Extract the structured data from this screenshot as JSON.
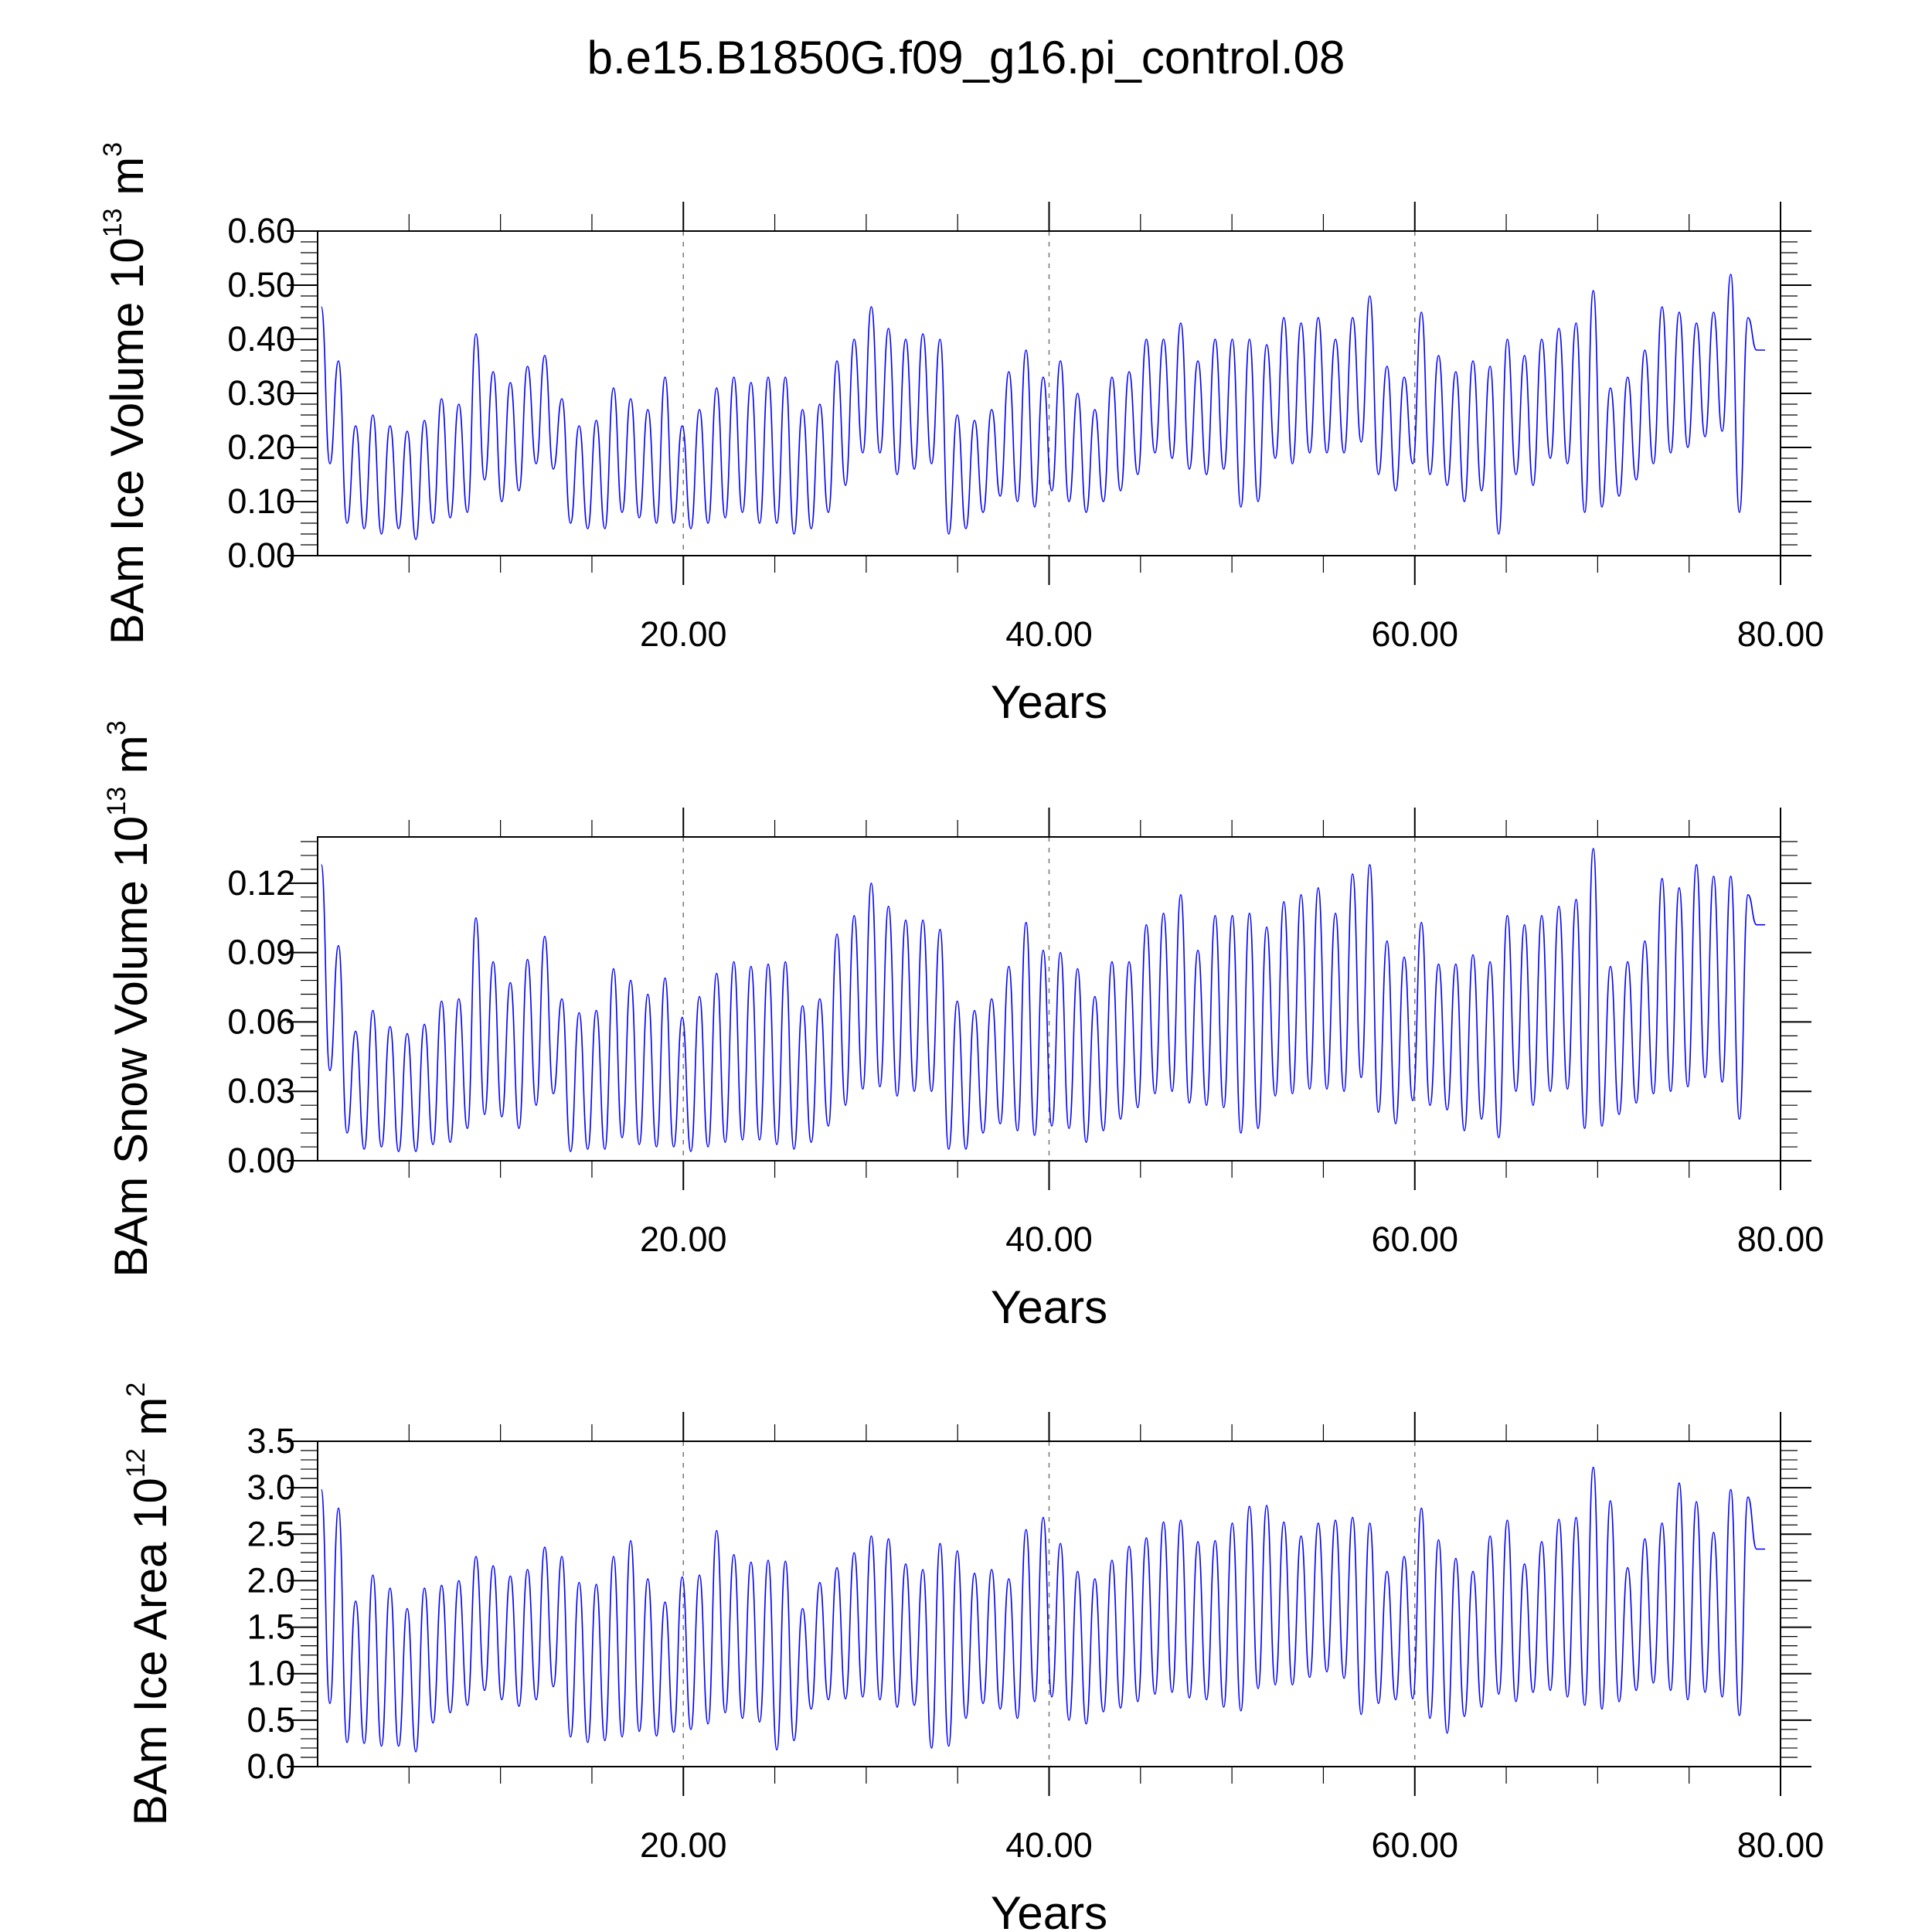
{
  "figure": {
    "title": "b.e15.B1850G.f09_g16.pi_control.08"
  },
  "chart_data": [
    {
      "type": "line",
      "ylabel": "BAm Ice Volume",
      "yunit_base": "10",
      "yunit_exp": "13",
      "yunit_unit": "m",
      "yunit_unit_exp": "3",
      "xlabel": "Years",
      "xlim": [
        0,
        80
      ],
      "ylim": [
        0,
        0.6
      ],
      "yticks": [
        0,
        0.1,
        0.2,
        0.3,
        0.4,
        0.5,
        0.6
      ],
      "ytick_labels": [
        "0.00",
        "0.10",
        "0.20",
        "0.30",
        "0.40",
        "0.50",
        "0.60"
      ],
      "xticks": [
        20,
        40,
        60,
        80
      ],
      "xtick_labels": [
        "20.00",
        "40.00",
        "60.00",
        "80.00"
      ],
      "grid_x": [
        20,
        40,
        60
      ],
      "series": [
        {
          "color": "#0000ff",
          "peaks": [
            0.46,
            0.36,
            0.24,
            0.26,
            0.24,
            0.23,
            0.25,
            0.29,
            0.28,
            0.41,
            0.34,
            0.32,
            0.35,
            0.37,
            0.29,
            0.24,
            0.25,
            0.31,
            0.29,
            0.27,
            0.33,
            0.24,
            0.27,
            0.31,
            0.33,
            0.32,
            0.33,
            0.33,
            0.27,
            0.28,
            0.36,
            0.4,
            0.46,
            0.42,
            0.4,
            0.41,
            0.4,
            0.26,
            0.25,
            0.27,
            0.34,
            0.38,
            0.33,
            0.36,
            0.3,
            0.27,
            0.33,
            0.34,
            0.4,
            0.4,
            0.43,
            0.36,
            0.4,
            0.4,
            0.4,
            0.39,
            0.44,
            0.43,
            0.44,
            0.4,
            0.44,
            0.48,
            0.35,
            0.33,
            0.45,
            0.37,
            0.34,
            0.36,
            0.35,
            0.4,
            0.37,
            0.4,
            0.42,
            0.43,
            0.49,
            0.31,
            0.33,
            0.38,
            0.46,
            0.45,
            0.43,
            0.45,
            0.52,
            0.44,
            0.38
          ],
          "troughs": [
            0.17,
            0.06,
            0.05,
            0.04,
            0.05,
            0.03,
            0.06,
            0.07,
            0.08,
            0.14,
            0.1,
            0.12,
            0.17,
            0.16,
            0.06,
            0.05,
            0.05,
            0.08,
            0.07,
            0.06,
            0.06,
            0.05,
            0.06,
            0.07,
            0.08,
            0.06,
            0.06,
            0.04,
            0.05,
            0.08,
            0.13,
            0.19,
            0.19,
            0.15,
            0.16,
            0.17,
            0.04,
            0.05,
            0.08,
            0.11,
            0.1,
            0.09,
            0.12,
            0.1,
            0.08,
            0.1,
            0.12,
            0.15,
            0.19,
            0.18,
            0.16,
            0.15,
            0.16,
            0.09,
            0.1,
            0.18,
            0.17,
            0.19,
            0.19,
            0.19,
            0.21,
            0.15,
            0.12,
            0.17,
            0.15,
            0.13,
            0.1,
            0.12,
            0.04,
            0.15,
            0.13,
            0.18,
            0.17,
            0.08,
            0.09,
            0.11,
            0.14,
            0.17,
            0.19,
            0.2,
            0.22,
            0.23,
            0.08,
            0.38
          ]
        }
      ]
    },
    {
      "type": "line",
      "ylabel": "BAm Snow Volume",
      "yunit_base": "10",
      "yunit_exp": "13",
      "yunit_unit": "m",
      "yunit_unit_exp": "3",
      "xlabel": "Years",
      "xlim": [
        0,
        80
      ],
      "ylim": [
        0,
        0.14
      ],
      "yticks": [
        0,
        0.03,
        0.06,
        0.09,
        0.12
      ],
      "ytick_labels": [
        "0.00",
        "0.03",
        "0.06",
        "0.09",
        "0.12"
      ],
      "xticks": [
        20,
        40,
        60,
        80
      ],
      "xtick_labels": [
        "20.00",
        "40.00",
        "60.00",
        "80.00"
      ],
      "grid_x": [
        20,
        40,
        60
      ],
      "series": [
        {
          "color": "#0000ff",
          "peaks": [
            0.128,
            0.093,
            0.056,
            0.065,
            0.058,
            0.055,
            0.059,
            0.069,
            0.07,
            0.105,
            0.086,
            0.077,
            0.087,
            0.097,
            0.07,
            0.064,
            0.065,
            0.083,
            0.078,
            0.072,
            0.079,
            0.062,
            0.071,
            0.081,
            0.086,
            0.084,
            0.085,
            0.086,
            0.067,
            0.07,
            0.098,
            0.106,
            0.12,
            0.11,
            0.104,
            0.104,
            0.1,
            0.069,
            0.065,
            0.07,
            0.084,
            0.103,
            0.091,
            0.09,
            0.083,
            0.071,
            0.086,
            0.086,
            0.102,
            0.107,
            0.115,
            0.091,
            0.106,
            0.106,
            0.107,
            0.101,
            0.112,
            0.115,
            0.118,
            0.107,
            0.124,
            0.128,
            0.095,
            0.088,
            0.103,
            0.085,
            0.085,
            0.089,
            0.086,
            0.106,
            0.102,
            0.106,
            0.11,
            0.113,
            0.135,
            0.084,
            0.086,
            0.095,
            0.122,
            0.118,
            0.128,
            0.123,
            0.123,
            0.115,
            0.102
          ],
          "troughs": [
            0.039,
            0.012,
            0.005,
            0.006,
            0.004,
            0.004,
            0.007,
            0.008,
            0.014,
            0.02,
            0.019,
            0.014,
            0.024,
            0.029,
            0.004,
            0.005,
            0.005,
            0.01,
            0.007,
            0.006,
            0.006,
            0.004,
            0.006,
            0.008,
            0.009,
            0.009,
            0.007,
            0.005,
            0.008,
            0.015,
            0.024,
            0.031,
            0.032,
            0.028,
            0.03,
            0.03,
            0.005,
            0.005,
            0.012,
            0.016,
            0.013,
            0.011,
            0.015,
            0.014,
            0.008,
            0.013,
            0.018,
            0.023,
            0.029,
            0.03,
            0.025,
            0.024,
            0.023,
            0.012,
            0.014,
            0.028,
            0.029,
            0.031,
            0.031,
            0.03,
            0.036,
            0.021,
            0.016,
            0.026,
            0.024,
            0.022,
            0.013,
            0.018,
            0.01,
            0.03,
            0.024,
            0.03,
            0.031,
            0.014,
            0.015,
            0.02,
            0.025,
            0.029,
            0.03,
            0.032,
            0.036,
            0.034,
            0.018,
            0.102
          ]
        }
      ]
    },
    {
      "type": "line",
      "ylabel": "BAm Ice Area",
      "yunit_base": "10",
      "yunit_exp": "12",
      "yunit_unit": "m",
      "yunit_unit_exp": "2",
      "xlabel": "Years",
      "xlim": [
        0,
        80
      ],
      "ylim": [
        0,
        3.5
      ],
      "yticks": [
        0,
        0.5,
        1.0,
        1.5,
        2.0,
        2.5,
        3.0,
        3.5
      ],
      "ytick_labels": [
        "0.0",
        "0.5",
        "1.0",
        "1.5",
        "2.0",
        "2.5",
        "3.0",
        "3.5"
      ],
      "xticks": [
        20,
        40,
        60,
        80
      ],
      "xtick_labels": [
        "20.00",
        "40.00",
        "60.00",
        "80.00"
      ],
      "grid_x": [
        20,
        40,
        60
      ],
      "series": [
        {
          "color": "#0000ff",
          "peaks": [
            2.98,
            2.78,
            1.78,
            2.06,
            1.92,
            1.7,
            1.92,
            1.95,
            2.0,
            2.26,
            2.16,
            2.05,
            2.12,
            2.36,
            2.26,
            1.98,
            1.96,
            2.26,
            2.43,
            2.02,
            1.77,
            2.04,
            2.06,
            2.54,
            2.28,
            2.2,
            2.22,
            2.21,
            1.7,
            1.98,
            2.14,
            2.3,
            2.48,
            2.45,
            2.18,
            2.12,
            2.4,
            2.32,
            2.08,
            2.12,
            2.02,
            2.55,
            2.68,
            2.4,
            2.1,
            2.02,
            2.22,
            2.37,
            2.46,
            2.63,
            2.65,
            2.42,
            2.43,
            2.62,
            2.8,
            2.81,
            2.63,
            2.48,
            2.62,
            2.65,
            2.68,
            2.62,
            2.1,
            2.26,
            2.78,
            2.44,
            2.24,
            2.1,
            2.48,
            2.65,
            2.18,
            2.42,
            2.66,
            2.68,
            3.22,
            2.86,
            2.14,
            2.45,
            2.62,
            3.05,
            2.85,
            2.52,
            2.98,
            2.9,
            2.34
          ],
          "troughs": [
            0.68,
            0.26,
            0.25,
            0.22,
            0.22,
            0.16,
            0.47,
            0.58,
            0.66,
            0.82,
            0.72,
            0.65,
            0.72,
            0.86,
            0.32,
            0.26,
            0.28,
            0.32,
            0.38,
            0.33,
            0.37,
            0.4,
            0.46,
            0.58,
            0.52,
            0.48,
            0.18,
            0.28,
            0.62,
            0.72,
            0.73,
            0.75,
            0.72,
            0.64,
            0.66,
            0.2,
            0.22,
            0.52,
            0.68,
            0.62,
            0.52,
            0.7,
            0.75,
            0.5,
            0.46,
            0.59,
            0.63,
            0.7,
            0.78,
            0.8,
            0.74,
            0.72,
            0.64,
            0.6,
            0.84,
            0.88,
            0.88,
            0.96,
            1.02,
            0.95,
            0.56,
            0.68,
            0.72,
            0.73,
            0.52,
            0.36,
            0.54,
            0.64,
            0.78,
            0.7,
            0.8,
            0.82,
            0.75,
            0.66,
            0.62,
            0.7,
            0.82,
            0.9,
            0.82,
            0.72,
            0.8,
            0.75,
            0.55,
            2.34
          ]
        }
      ]
    }
  ]
}
